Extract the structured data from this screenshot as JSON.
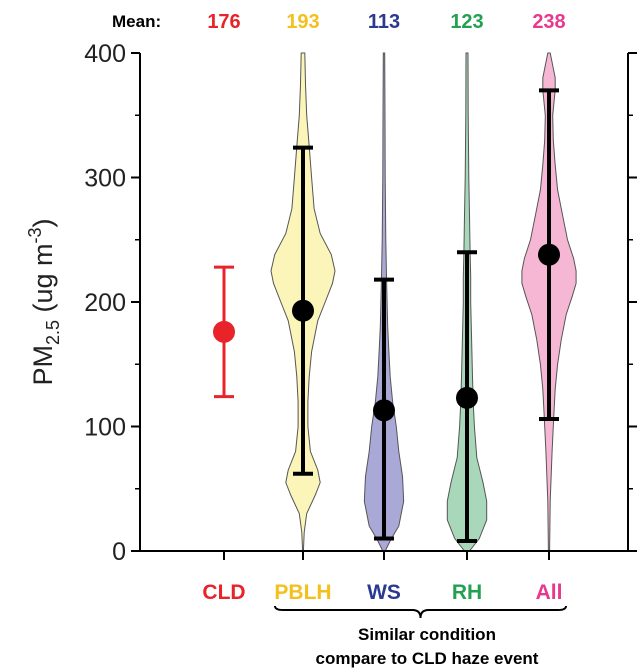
{
  "chart_data": {
    "type": "violin",
    "mean_label": "Mean:",
    "ylabel_main": "PM",
    "ylabel_sub": "2.5",
    "ylabel_unit_open": " (ug m",
    "ylabel_unit_exp": "-3",
    "ylabel_unit_close": ")",
    "ylim": [
      0,
      400
    ],
    "yticks": [
      "0",
      "100",
      "200",
      "300",
      "400"
    ],
    "bracket_label_line1": "Similar condition",
    "bracket_label_line2": "compare to CLD haze event",
    "categories": [
      {
        "name": "CLD",
        "color": "#e8232a",
        "fill": null,
        "mean_text": "176",
        "mean": 176,
        "low": 124,
        "high": 228,
        "violin": []
      },
      {
        "name": "PBLH",
        "color": "#f4c01e",
        "fill": "#fbf5b9",
        "mean_text": "193",
        "mean": 193,
        "low": 62,
        "high": 324,
        "violin": [
          [
            0,
            0.3
          ],
          [
            15,
            1
          ],
          [
            30,
            3
          ],
          [
            45,
            10
          ],
          [
            55,
            14
          ],
          [
            65,
            12
          ],
          [
            80,
            6
          ],
          [
            100,
            4
          ],
          [
            120,
            4
          ],
          [
            140,
            5
          ],
          [
            160,
            7
          ],
          [
            175,
            10
          ],
          [
            185,
            12
          ],
          [
            200,
            18
          ],
          [
            215,
            24
          ],
          [
            225,
            26
          ],
          [
            238,
            23
          ],
          [
            255,
            14
          ],
          [
            275,
            9
          ],
          [
            300,
            7
          ],
          [
            325,
            5
          ],
          [
            350,
            3
          ],
          [
            375,
            2
          ],
          [
            400,
            1.5
          ]
        ]
      },
      {
        "name": "WS",
        "color": "#2b3990",
        "fill": "#a9a8d6",
        "mean_text": "113",
        "mean": 113,
        "low": 10,
        "high": 218,
        "violin": [
          [
            0,
            1
          ],
          [
            10,
            6
          ],
          [
            20,
            12
          ],
          [
            40,
            16
          ],
          [
            60,
            15
          ],
          [
            80,
            12
          ],
          [
            100,
            10
          ],
          [
            120,
            7
          ],
          [
            140,
            5
          ],
          [
            160,
            4
          ],
          [
            180,
            3
          ],
          [
            200,
            2.5
          ],
          [
            220,
            2
          ],
          [
            250,
            1.5
          ],
          [
            300,
            1
          ],
          [
            350,
            0.8
          ],
          [
            400,
            0.6
          ]
        ]
      },
      {
        "name": "RH",
        "color": "#22a150",
        "fill": "#a8d7b9",
        "mean_text": "123",
        "mean": 123,
        "low": 8,
        "high": 240,
        "violin": [
          [
            0,
            2
          ],
          [
            10,
            10
          ],
          [
            25,
            16
          ],
          [
            40,
            16
          ],
          [
            55,
            13
          ],
          [
            75,
            8
          ],
          [
            100,
            6
          ],
          [
            120,
            5
          ],
          [
            140,
            4.5
          ],
          [
            160,
            4
          ],
          [
            180,
            3.5
          ],
          [
            200,
            3
          ],
          [
            220,
            3
          ],
          [
            240,
            2.5
          ],
          [
            270,
            2
          ],
          [
            300,
            1.5
          ],
          [
            350,
            1
          ],
          [
            400,
            0.8
          ]
        ]
      },
      {
        "name": "All",
        "color": "#e6398f",
        "fill": "#f6b7d4",
        "mean_text": "238",
        "mean": 238,
        "low": 106,
        "high": 370,
        "violin": [
          [
            0,
            0.5
          ],
          [
            40,
            1
          ],
          [
            80,
            2.5
          ],
          [
            110,
            4
          ],
          [
            130,
            5
          ],
          [
            150,
            7
          ],
          [
            170,
            10
          ],
          [
            190,
            14
          ],
          [
            205,
            19
          ],
          [
            215,
            22
          ],
          [
            225,
            22
          ],
          [
            235,
            20
          ],
          [
            250,
            15
          ],
          [
            270,
            11
          ],
          [
            290,
            7
          ],
          [
            310,
            5
          ],
          [
            330,
            3.5
          ],
          [
            350,
            3
          ],
          [
            370,
            5
          ],
          [
            380,
            5
          ],
          [
            390,
            3
          ],
          [
            400,
            1
          ]
        ]
      }
    ]
  }
}
